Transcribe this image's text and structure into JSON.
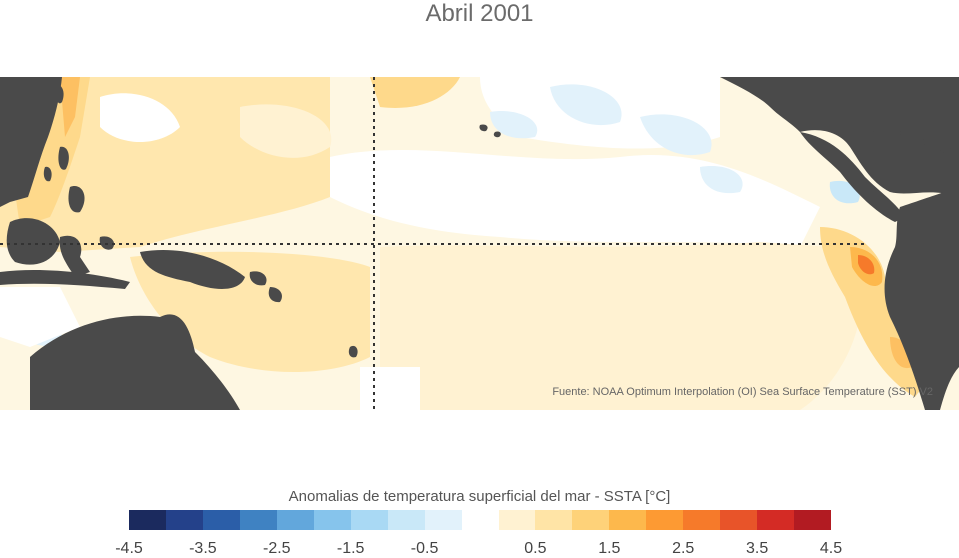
{
  "title": "Abril 2001",
  "source_note": "Fuente: NOAA Optimum Interpolation (OI) Sea Surface Temperature (SST) V2",
  "colorbar": {
    "title": "Anomalias de temperatura superficial del mar - SSTA  [°C]",
    "ticks": [
      "-4.5",
      "-3.5",
      "-2.5",
      "-1.5",
      "-0.5",
      "0.5",
      "1.5",
      "2.5",
      "3.5",
      "4.5"
    ],
    "colors": [
      "#1b2a5e",
      "#24418a",
      "#2b5ea8",
      "#3f82c2",
      "#62a7dc",
      "#86c4ec",
      "#a9d9f4",
      "#c9e8f8",
      "#e2f2fb",
      "#ffffff",
      "#fff2d2",
      "#ffe4a6",
      "#fed279",
      "#fdb84c",
      "#fd9a33",
      "#f67a2a",
      "#e85429",
      "#d42b25",
      "#b21b22"
    ]
  },
  "colors": {
    "land": "#4a4a4a",
    "ocean_base": "#fef7e2",
    "grid": "#333333"
  }
}
